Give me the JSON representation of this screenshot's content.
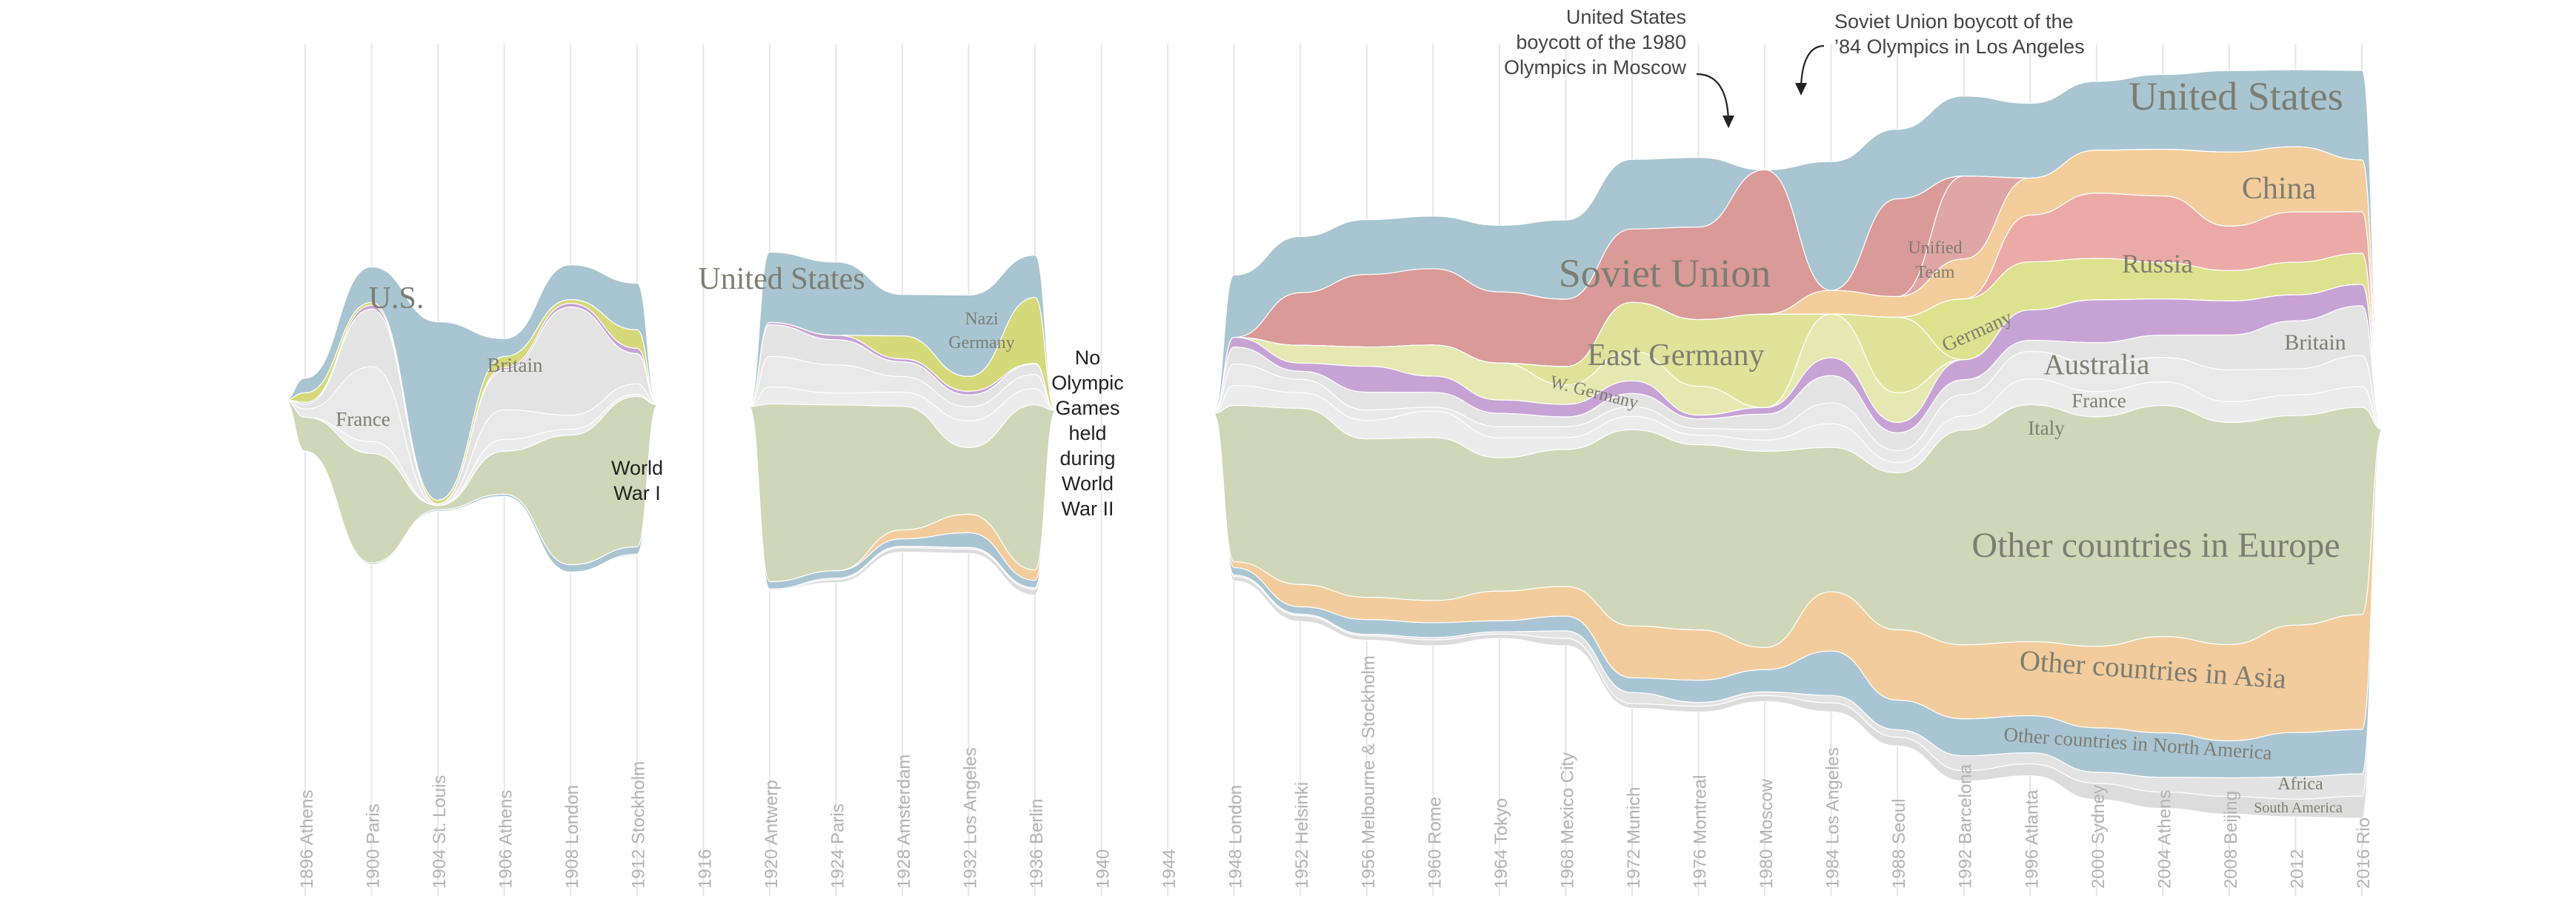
{
  "chart_data": {
    "type": "area",
    "subtype": "streamgraph",
    "title": "",
    "xlabel": "",
    "ylabel": "",
    "x": [
      "1896 Athens",
      "1900 Paris",
      "1904 St. Louis",
      "1906 Athens",
      "1908 London",
      "1912 Stockholm",
      "1916",
      "1920 Antwerp",
      "1924 Paris",
      "1928 Amsterdam",
      "1932 Los Angeles",
      "1936 Berlin",
      "1940",
      "1944",
      "1948 London",
      "1952 Helsinki",
      "1956 Melbourne & Stockholm",
      "1960 Rome",
      "1964 Tokyo",
      "1968 Mexico City",
      "1972 Munich",
      "1976 Montreal",
      "1980 Moscow",
      "1984 Los Angeles",
      "1988 Seoul",
      "1992 Barcelona",
      "1996 Atlanta",
      "2000 Sydney",
      "2004 Athens",
      "2008 Beijing",
      "2012",
      "2016 Rio"
    ],
    "tick_labels": [
      "1896 Athens",
      "1900 Paris",
      "1904 St. Louis",
      "1906 Athens",
      "1908 London",
      "1912 Stockholm",
      "1916",
      "1920 Antwerp",
      "1924 Paris",
      "1928 Amsterdam",
      "1932 Los Angeles",
      "1936 Berlin",
      "1940",
      "1944",
      "1948 London",
      "1952 Helsinki",
      "1956 Melbourne & Stockholm",
      "1960 Rome",
      "1964 Tokyo",
      "1968 Mexico City",
      "1972 Munich",
      "1976 Montreal",
      "1980 Moscow",
      "1984 Los Angeles",
      "1988 Seoul",
      "1992 Barcelona",
      "1996 Atlanta",
      "2000 Sydney",
      "2004 Athens",
      "2008 Beijing",
      "2012",
      "2016 Rio"
    ],
    "no_games": [
      "1916",
      "1940",
      "1944"
    ],
    "series": [
      {
        "id": "us",
        "name": "United States",
        "color": "#a8c5d1",
        "values": [
          20,
          48,
          241,
          24,
          47,
          63,
          0,
          95,
          99,
          56,
          110,
          57,
          0,
          0,
          84,
          76,
          74,
          71,
          90,
          107,
          94,
          94,
          0,
          174,
          94,
          108,
          101,
          93,
          101,
          110,
          104,
          121
        ]
      },
      {
        "id": "soviet",
        "name": "Soviet Union",
        "color": "#d99a98",
        "values": [
          0,
          0,
          0,
          0,
          0,
          0,
          0,
          0,
          0,
          0,
          0,
          0,
          0,
          0,
          0,
          71,
          98,
          103,
          96,
          91,
          99,
          125,
          195,
          0,
          132,
          0,
          0,
          0,
          0,
          0,
          0,
          0
        ]
      },
      {
        "id": "unified",
        "name": "Unified Team",
        "color": "#e0a6a5",
        "values": [
          0,
          0,
          0,
          0,
          0,
          0,
          0,
          0,
          0,
          0,
          0,
          0,
          0,
          0,
          0,
          0,
          0,
          0,
          0,
          0,
          0,
          0,
          0,
          0,
          0,
          112,
          0,
          0,
          0,
          0,
          0,
          0
        ]
      },
      {
        "id": "china",
        "name": "China",
        "color": "#f3cd9b",
        "values": [
          0,
          0,
          0,
          0,
          0,
          0,
          0,
          0,
          0,
          0,
          0,
          0,
          0,
          0,
          0,
          0,
          0,
          0,
          0,
          0,
          0,
          0,
          0,
          32,
          28,
          54,
          50,
          58,
          63,
          100,
          88,
          70
        ]
      },
      {
        "id": "russia",
        "name": "Russia",
        "color": "#ecaaa6",
        "values": [
          0,
          0,
          0,
          0,
          0,
          0,
          0,
          0,
          0,
          0,
          0,
          0,
          0,
          0,
          0,
          0,
          0,
          0,
          0,
          0,
          0,
          0,
          0,
          0,
          0,
          0,
          63,
          88,
          90,
          60,
          68,
          56
        ]
      },
      {
        "id": "germany",
        "name": "Germany",
        "color": "#dde28e",
        "values": [
          0,
          0,
          0,
          0,
          0,
          0,
          0,
          0,
          0,
          0,
          0,
          0,
          0,
          0,
          0,
          0,
          0,
          0,
          0,
          0,
          0,
          0,
          0,
          0,
          0,
          82,
          65,
          56,
          49,
          41,
          44,
          42
        ]
      },
      {
        "id": "eastgermany",
        "name": "East Germany",
        "color": "#dfe39a",
        "values": [
          0,
          0,
          0,
          0,
          0,
          0,
          0,
          0,
          0,
          0,
          0,
          0,
          0,
          0,
          0,
          0,
          0,
          0,
          0,
          25,
          66,
          90,
          126,
          0,
          102,
          0,
          0,
          0,
          0,
          0,
          0,
          0
        ]
      },
      {
        "id": "wgermany",
        "name": "W. Germany",
        "color": "#e5e8b0",
        "values": [
          0,
          0,
          0,
          0,
          0,
          0,
          0,
          0,
          0,
          0,
          0,
          0,
          0,
          0,
          0,
          24,
          26,
          42,
          50,
          26,
          40,
          39,
          0,
          59,
          40,
          0,
          0,
          0,
          0,
          0,
          0,
          0
        ]
      },
      {
        "id": "nazigermany",
        "name": "Nazi Germany",
        "color": "#d5d97a",
        "values": [
          13,
          4,
          5,
          15,
          5,
          25,
          0,
          0,
          0,
          31,
          20,
          89,
          0,
          0,
          0,
          0,
          0,
          0,
          0,
          0,
          0,
          0,
          0,
          0,
          0,
          0,
          0,
          0,
          0,
          0,
          0,
          0
        ]
      },
      {
        "id": "australia",
        "name": "Australia",
        "color": "#c7a3d5",
        "values": [
          2,
          5,
          0,
          3,
          5,
          7,
          0,
          3,
          6,
          4,
          5,
          1,
          0,
          0,
          13,
          11,
          35,
          22,
          18,
          17,
          17,
          5,
          9,
          24,
          14,
          27,
          41,
          58,
          49,
          46,
          35,
          29
        ]
      },
      {
        "id": "britain",
        "name": "Britain",
        "color": "#e3e3e3",
        "values": [
          7,
          78,
          2,
          54,
          146,
          41,
          0,
          43,
          34,
          20,
          16,
          14,
          0,
          0,
          23,
          11,
          24,
          20,
          18,
          13,
          18,
          13,
          21,
          37,
          24,
          20,
          15,
          28,
          30,
          47,
          65,
          67
        ]
      },
      {
        "id": "france",
        "name": "France",
        "color": "#e9e9e9",
        "values": [
          11,
          101,
          0,
          40,
          19,
          14,
          0,
          41,
          38,
          21,
          19,
          19,
          0,
          0,
          29,
          18,
          14,
          5,
          15,
          15,
          13,
          9,
          14,
          28,
          16,
          29,
          37,
          38,
          33,
          43,
          35,
          42
        ]
      },
      {
        "id": "italy",
        "name": "Italy",
        "color": "#ececec",
        "values": [
          0,
          16,
          0,
          16,
          8,
          3,
          0,
          23,
          16,
          19,
          36,
          22,
          0,
          0,
          27,
          21,
          25,
          36,
          27,
          16,
          18,
          13,
          15,
          32,
          14,
          19,
          35,
          34,
          32,
          28,
          28,
          28
        ]
      },
      {
        "id": "europe",
        "name": "Other countries in Europe",
        "color": "#cfd7b8",
        "values": [
          46,
          148,
          6,
          58,
          175,
          203,
          0,
          240,
          224,
          167,
          90,
          223,
          0,
          0,
          211,
          238,
          214,
          220,
          180,
          185,
          265,
          250,
          265,
          195,
          212,
          290,
          320,
          310,
          312,
          300,
          283,
          280
        ]
      },
      {
        "id": "asia",
        "name": "Other countries in Asia",
        "color": "#f2cc9c",
        "values": [
          0,
          0,
          0,
          0,
          0,
          0,
          0,
          0,
          0,
          12,
          25,
          14,
          0,
          0,
          8,
          30,
          30,
          30,
          40,
          40,
          70,
          68,
          30,
          80,
          95,
          100,
          100,
          110,
          130,
          130,
          145,
          155
        ]
      },
      {
        "id": "northamerica",
        "name": "Other countries in North America",
        "color": "#a9c5d3",
        "values": [
          0,
          2,
          2,
          3,
          10,
          10,
          0,
          10,
          10,
          10,
          20,
          10,
          0,
          0,
          10,
          10,
          20,
          20,
          15,
          20,
          20,
          30,
          30,
          60,
          40,
          50,
          50,
          60,
          60,
          50,
          60,
          60
        ]
      },
      {
        "id": "africa",
        "name": "Africa",
        "color": "#e2e2e2",
        "values": [
          0,
          0,
          0,
          0,
          0,
          2,
          0,
          2,
          2,
          2,
          2,
          2,
          0,
          0,
          2,
          2,
          2,
          3,
          3,
          10,
          15,
          5,
          5,
          10,
          10,
          20,
          15,
          15,
          20,
          25,
          30,
          30
        ]
      },
      {
        "id": "southamerica",
        "name": "South America",
        "color": "#dcdcdc",
        "values": [
          0,
          0,
          0,
          0,
          0,
          0,
          0,
          0,
          4,
          6,
          6,
          8,
          0,
          0,
          6,
          8,
          6,
          8,
          6,
          10,
          6,
          8,
          8,
          12,
          12,
          14,
          16,
          22,
          22,
          24,
          24,
          30
        ]
      }
    ],
    "labels": {
      "us_early": "U.S.",
      "us": "United States",
      "france": "France",
      "britain": "Britain",
      "nazi_germany_1": "Nazi",
      "nazi_germany_2": "Germany",
      "soviet_union": "Soviet Union",
      "east_germany": "East Germany",
      "w_germany": "W. Germany",
      "unified_team_1": "Unified",
      "unified_team_2": "Team",
      "germany": "Germany",
      "china": "China",
      "russia": "Russia",
      "britain_late": "Britain",
      "australia": "Australia",
      "france_late": "France",
      "italy": "Italy",
      "europe": "Other countries in Europe",
      "asia": "Other countries in Asia",
      "north_america": "Other countries in North America",
      "africa": "Africa",
      "south_america": "South America"
    },
    "gap_labels": {
      "ww1": [
        "World",
        "War I"
      ],
      "ww2": [
        "No",
        "Olympic",
        "Games",
        "held",
        "during",
        "World",
        "War II"
      ]
    },
    "annotations": {
      "boycott_1980": [
        "United States",
        "boycott of the 1980",
        "Olympics in Moscow"
      ],
      "boycott_1984": [
        "Soviet Union boycott of the",
        "’84 Olympics in Los Angeles"
      ]
    },
    "grid": true,
    "legend": "none (labels placed on streams)"
  }
}
